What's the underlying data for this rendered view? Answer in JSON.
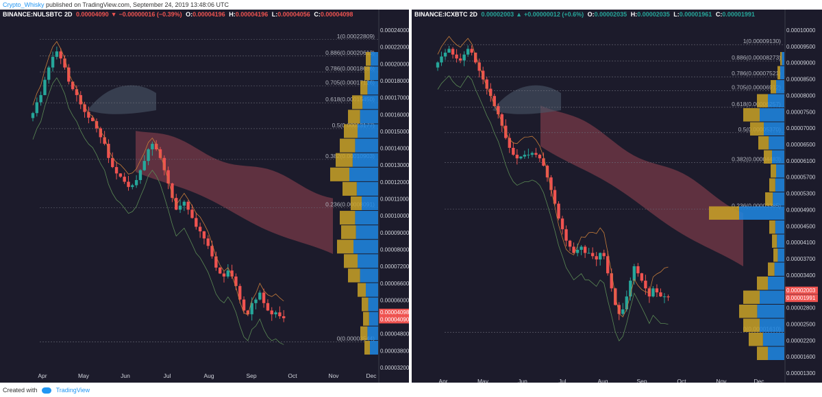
{
  "header": {
    "author": "Crypto_Whisky",
    "published": "published on TradingView.com, September 24, 2019 13:48:06 UTC"
  },
  "footer": {
    "created_with": "Created with",
    "brand": "TradingView"
  },
  "colors": {
    "bg": "#1c1b2b",
    "up": "#26a69a",
    "down": "#ef5350",
    "cloud_bear": "#6b3544",
    "cloud_bull": "#4a5668",
    "fib_label": "#b2b5be",
    "vp_up": "#1e88e5",
    "vp_down": "#c9a227"
  },
  "chart_data": [
    {
      "type": "candlestick",
      "symbol": "BINANCE:NULSBTC",
      "interval": "2D",
      "last": "0.00004090",
      "change": "−0.00000016 (−0.39%)",
      "change_dir": "down",
      "ohlc": {
        "O": "0.00004196",
        "H": "0.00004196",
        "L": "0.00004056",
        "C": "0.00004098"
      },
      "x_ticks": [
        "Apr",
        "May",
        "Jun",
        "Jul",
        "Aug",
        "Sep",
        "Oct",
        "Nov",
        "Dec"
      ],
      "y_ticks": [
        "0.00024000",
        "0.00022000",
        "0.00020000",
        "0.00018000",
        "0.00017000",
        "0.00016000",
        "0.00015000",
        "0.00014000",
        "0.00013000",
        "0.00012000",
        "0.00011000",
        "0.00010000",
        "0.00009000",
        "0.00008000",
        "0.00007200",
        "0.00006600",
        "0.00006000",
        "0.00005400",
        "0.00004800",
        "0.00003800",
        "0.00003200"
      ],
      "price_badges": [
        {
          "label": "0.00004098",
          "value": 4.098
        },
        {
          "label": "0.00004090",
          "value": 4.09
        }
      ],
      "fib_levels": [
        {
          "label": "1(0.00022809)",
          "value": 22.809
        },
        {
          "label": "0.886(0.00020613)",
          "value": 20.613
        },
        {
          "label": "0.786(0.00018686)",
          "value": 18.686
        },
        {
          "label": "0.705(0.00017126)",
          "value": 17.126
        },
        {
          "label": "0.618(0.00015450)",
          "value": 15.45
        },
        {
          "label": "0.5(0.00013177)",
          "value": 13.177
        },
        {
          "label": "0.382(0.00010903)",
          "value": 10.903
        },
        {
          "label": "0.236(0.00008091)",
          "value": 8.091
        },
        {
          "label": "0(0.00003544)",
          "value": 3.544
        }
      ],
      "close_series": [
        14.5,
        15.5,
        16.2,
        17.8,
        19.2,
        20.5,
        21.2,
        20.3,
        19.2,
        17.6,
        16.8,
        16.2,
        15.3,
        14.6,
        14.1,
        13.8,
        13.2,
        12.5,
        12.0,
        11.0,
        10.4,
        10.0,
        9.8,
        9.5,
        9.2,
        9.3,
        9.6,
        10.2,
        10.8,
        11.6,
        12.0,
        11.6,
        11.0,
        10.2,
        9.4,
        8.6,
        8.0,
        8.2,
        8.4,
        8.0,
        7.6,
        7.2,
        7.0,
        6.7,
        6.4,
        6.0,
        5.6,
        5.4,
        5.3,
        5.5,
        5.3,
        5.0,
        4.6,
        4.3,
        4.2,
        4.5,
        4.6,
        4.8,
        4.5,
        4.3,
        4.2,
        4.25,
        4.15,
        4.1
      ]
    },
    {
      "type": "candlestick",
      "symbol": "BINANCE:ICXBTC",
      "interval": "2D",
      "last": "0.00002003",
      "change": "+0.00000012 (+0.6%)",
      "change_dir": "up",
      "ohlc": {
        "O": "0.00002035",
        "H": "0.00002035",
        "L": "0.00001961",
        "C": "0.00001991"
      },
      "x_ticks": [
        "Apr",
        "May",
        "Jun",
        "Jul",
        "Aug",
        "Sep",
        "Oct",
        "Nov",
        "Dec"
      ],
      "y_ticks": [
        "0.00010000",
        "0.00009500",
        "0.00009000",
        "0.00008500",
        "0.00008000",
        "0.00007500",
        "0.00007000",
        "0.00006500",
        "0.00006100",
        "0.00005700",
        "0.00005300",
        "0.00004900",
        "0.00004500",
        "0.00004100",
        "0.00003700",
        "0.00003400",
        "0.00003100",
        "0.00002800",
        "0.00002500",
        "0.00002200",
        "0.00001600",
        "0.00001300"
      ],
      "price_badges": [
        {
          "label": "0.00002003",
          "value": 2.003
        },
        {
          "label": "0.00001991",
          "value": 1.991
        }
      ],
      "fib_levels": [
        {
          "label": "1(0.00009130)",
          "value": 9.13
        },
        {
          "label": "0.886(0.00008273)",
          "value": 8.273
        },
        {
          "label": "0.786(0.00007521)",
          "value": 7.521
        },
        {
          "label": "0.705(0.00006912)",
          "value": 6.912
        },
        {
          "label": "0.618(0.00006257)",
          "value": 6.257
        },
        {
          "label": "0.5(0.00005370)",
          "value": 5.37
        },
        {
          "label": "0.382(0.00004483)",
          "value": 4.483
        },
        {
          "label": "0.236(0.00003385)",
          "value": 3.385
        },
        {
          "label": "0(0.00001610)",
          "value": 1.61
        }
      ],
      "close_series": [
        8.2,
        8.5,
        8.7,
        8.9,
        8.6,
        8.4,
        8.3,
        8.6,
        8.9,
        8.7,
        8.2,
        7.8,
        7.4,
        7.0,
        6.7,
        6.3,
        6.0,
        5.6,
        5.2,
        4.9,
        4.7,
        4.6,
        4.65,
        4.7,
        4.7,
        4.75,
        4.7,
        4.6,
        4.4,
        4.1,
        3.8,
        3.5,
        3.2,
        3.0,
        2.8,
        2.7,
        2.6,
        2.65,
        2.7,
        2.6,
        2.6,
        2.55,
        2.5,
        2.6,
        2.55,
        2.3,
        2.1,
        1.9,
        1.8,
        1.85,
        2.0,
        2.2,
        2.4,
        2.3,
        2.2,
        2.1,
        2.0,
        2.1,
        2.05,
        2.0,
        2.0,
        1.99
      ]
    }
  ]
}
